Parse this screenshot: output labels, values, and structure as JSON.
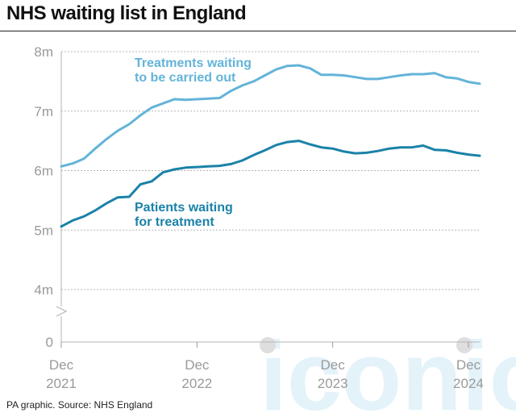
{
  "title": "NHS waiting list in England",
  "footer": "PA graphic. Source: NHS England",
  "watermark": "iconic",
  "chart_data": {
    "type": "line",
    "title": "NHS waiting list in England",
    "xlabel": "",
    "ylabel": "",
    "ylim": [
      4,
      8
    ],
    "y_axis_break": true,
    "y_ticks": [
      {
        "value": 8,
        "label": "8m"
      },
      {
        "value": 7,
        "label": "7m"
      },
      {
        "value": 6,
        "label": "6m"
      },
      {
        "value": 5,
        "label": "5m"
      },
      {
        "value": 4,
        "label": "4m"
      },
      {
        "value": 0,
        "label": "0"
      }
    ],
    "x_ticks": [
      {
        "index": 0,
        "month": "Dec",
        "year": "2021"
      },
      {
        "index": 12,
        "month": "Dec",
        "year": "2022"
      },
      {
        "index": 24,
        "month": "Dec",
        "year": "2023"
      },
      {
        "index": 36,
        "month": "Dec",
        "year": "2024"
      }
    ],
    "grid": true,
    "series": [
      {
        "name": "Treatments waiting to be carried out",
        "label_lines": [
          "Treatments waiting",
          "to be carried out"
        ],
        "color": "#63b4d9",
        "values": [
          6.07,
          6.12,
          6.2,
          6.37,
          6.53,
          6.67,
          6.78,
          6.93,
          7.06,
          7.13,
          7.2,
          7.19,
          7.2,
          7.21,
          7.22,
          7.34,
          7.43,
          7.5,
          7.6,
          7.7,
          7.76,
          7.77,
          7.72,
          7.61,
          7.61,
          7.6,
          7.57,
          7.54,
          7.54,
          7.57,
          7.6,
          7.62,
          7.62,
          7.64,
          7.57,
          7.55,
          7.49,
          7.46
        ]
      },
      {
        "name": "Patients waiting for treatment",
        "label_lines": [
          "Patients waiting",
          "for treatment"
        ],
        "color": "#1a82a8",
        "values": [
          5.06,
          5.16,
          5.23,
          5.33,
          5.45,
          5.55,
          5.56,
          5.77,
          5.82,
          5.97,
          6.02,
          6.05,
          6.06,
          6.07,
          6.08,
          6.11,
          6.17,
          6.26,
          6.34,
          6.43,
          6.48,
          6.5,
          6.44,
          6.39,
          6.37,
          6.32,
          6.29,
          6.3,
          6.33,
          6.37,
          6.39,
          6.39,
          6.42,
          6.35,
          6.34,
          6.3,
          6.27,
          6.25
        ]
      }
    ]
  }
}
